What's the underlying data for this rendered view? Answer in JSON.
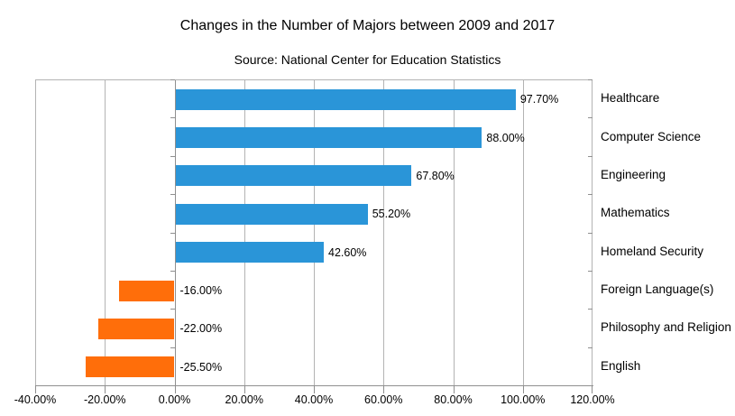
{
  "chart_data": {
    "type": "bar",
    "orientation": "horizontal",
    "title": "Changes in the Number of Majors between 2009 and 2017",
    "subtitle": "Source: National Center for Education Statistics",
    "categories": [
      "Healthcare",
      "Computer Science",
      "Engineering",
      "Mathematics",
      "Homeland Security",
      "Foreign Language(s)",
      "Philosophy and Religion",
      "English"
    ],
    "values": [
      97.7,
      88.0,
      67.8,
      55.2,
      42.6,
      -16.0,
      -22.0,
      -25.5
    ],
    "data_labels": [
      "97.70%",
      "88.00%",
      "67.80%",
      "55.20%",
      "42.60%",
      "-16.00%",
      "-22.00%",
      "-25.50%"
    ],
    "x_tick_labels": [
      "-40.00%",
      "-20.00%",
      "0.00%",
      "20.00%",
      "40.00%",
      "60.00%",
      "80.00%",
      "100.00%",
      "120.00%"
    ],
    "x_tick_values": [
      -40,
      -20,
      0,
      20,
      40,
      60,
      80,
      100,
      120
    ],
    "xlim": [
      -40,
      120
    ],
    "grid": true,
    "legend": "none",
    "positive_color": "#2A95D8",
    "negative_color": "#FF6E0A",
    "gridline_color": "#b3b3b3",
    "axis_color": "#8f8f8f",
    "text_color": "#000000"
  }
}
